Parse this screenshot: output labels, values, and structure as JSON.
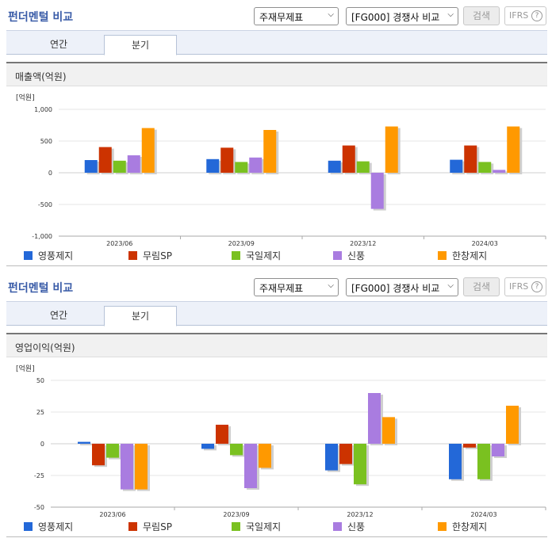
{
  "sections": [
    {
      "title": "펀더멘털 비교",
      "select_statement": "주재무제표",
      "select_group": "[FG000] 경쟁사 비교",
      "search_label": "검색",
      "ifrs_label": "IFRS",
      "help_label": "?",
      "tabs": [
        "연간",
        "분기"
      ],
      "active_tab": "분기",
      "chart_title": "매출액(억원)"
    },
    {
      "title": "펀더멘털 비교",
      "select_statement": "주재무제표",
      "select_group": "[FG000] 경쟁사 비교",
      "search_label": "검색",
      "ifrs_label": "IFRS",
      "help_label": "?",
      "tabs": [
        "연간",
        "분기"
      ],
      "active_tab": "분기",
      "chart_title": "영업이익(억원)"
    }
  ],
  "chart_data": [
    {
      "type": "bar",
      "unit_label": "[억원]",
      "categories": [
        "2023/06",
        "2023/09",
        "2023/12",
        "2024/03"
      ],
      "ylim": [
        -1000,
        1000
      ],
      "yticks": [
        -1000,
        -500,
        0,
        500,
        1000
      ],
      "ytick_labels": [
        "-1,000",
        "-500",
        "0",
        "500",
        "1,000"
      ],
      "legend_position": "bottom",
      "series": [
        {
          "name": "영풍제지",
          "color": "#2368d8",
          "values": [
            200,
            215,
            190,
            205
          ]
        },
        {
          "name": "무림SP",
          "color": "#cc3300",
          "values": [
            405,
            395,
            430,
            430
          ]
        },
        {
          "name": "국일제지",
          "color": "#7ac120",
          "values": [
            190,
            170,
            180,
            170
          ]
        },
        {
          "name": "신풍",
          "color": "#a97ce0",
          "values": [
            275,
            240,
            -570,
            45
          ]
        },
        {
          "name": "한창제지",
          "color": "#ff9900",
          "values": [
            705,
            675,
            730,
            730
          ]
        }
      ]
    },
    {
      "type": "bar",
      "unit_label": "[억원]",
      "categories": [
        "2023/06",
        "2023/09",
        "2023/12",
        "2024/03"
      ],
      "ylim": [
        -50,
        50
      ],
      "yticks": [
        -50,
        -25,
        0,
        25,
        50
      ],
      "ytick_labels": [
        "-50",
        "-25",
        "0",
        "25",
        "50"
      ],
      "legend_position": "bottom",
      "series": [
        {
          "name": "영풍제지",
          "color": "#2368d8",
          "values": [
            1.5,
            -4,
            -21,
            -28
          ]
        },
        {
          "name": "무림SP",
          "color": "#cc3300",
          "values": [
            -17,
            15,
            -16,
            -3
          ]
        },
        {
          "name": "국일제지",
          "color": "#7ac120",
          "values": [
            -11,
            -9,
            -32,
            -28
          ]
        },
        {
          "name": "신풍",
          "color": "#a97ce0",
          "values": [
            -36,
            -35,
            40,
            -10
          ]
        },
        {
          "name": "한창제지",
          "color": "#ff9900",
          "values": [
            -36,
            -19,
            21,
            30
          ]
        }
      ]
    }
  ]
}
